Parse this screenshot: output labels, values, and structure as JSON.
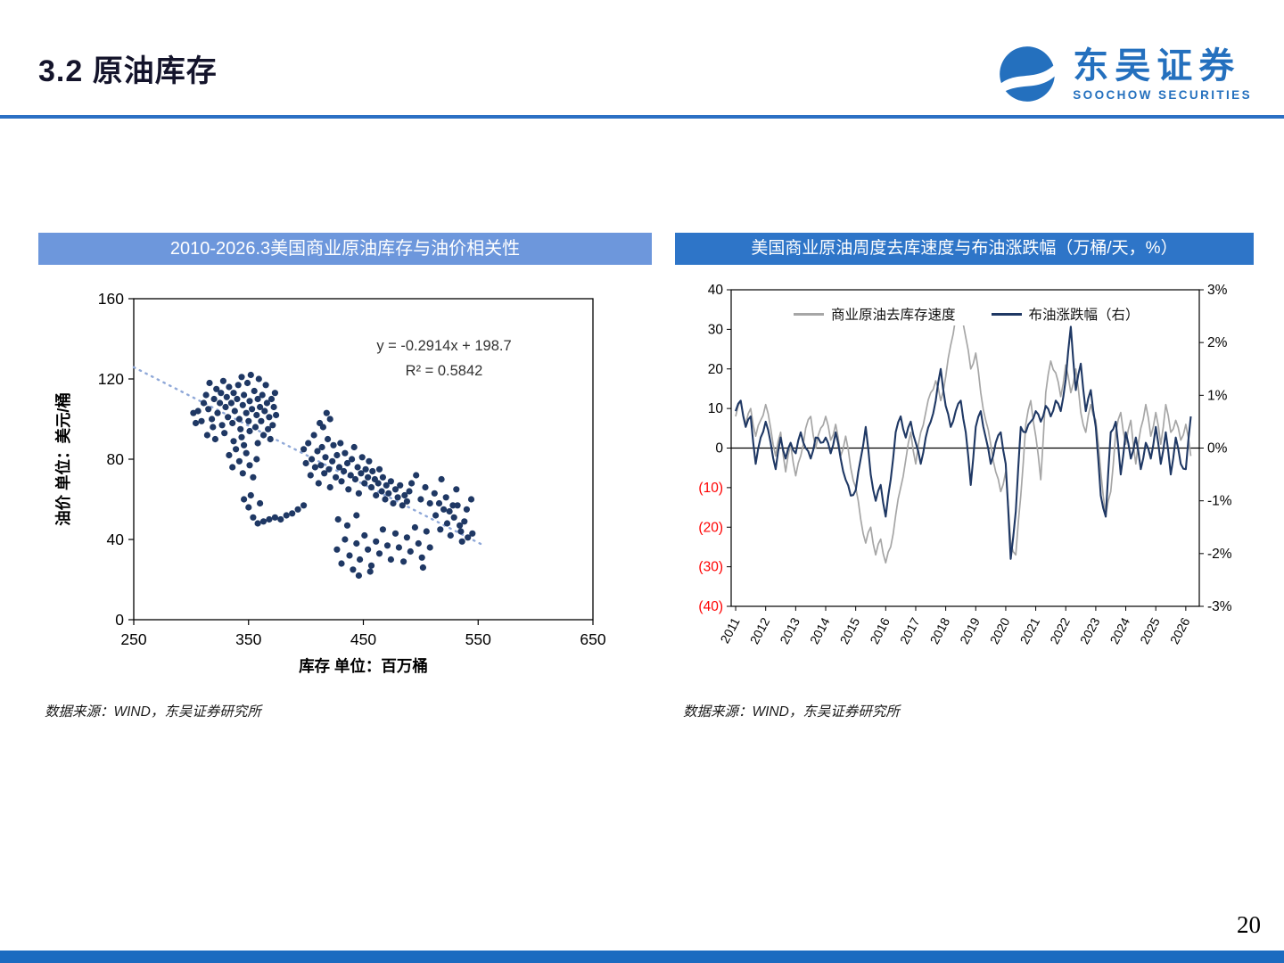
{
  "header": {
    "title": "3.2 原油库存",
    "logo_name": "东吴证券",
    "logo_subtitle": "SOOCHOW SECURITIES"
  },
  "panels": {
    "left": {
      "title": "2010-2026.3美国商业原油库存与油价相关性",
      "source": "数据来源：WIND，东吴证券研究所"
    },
    "right": {
      "title": "美国商业原油周度去库速度与布油涨跌幅（万桶/天，%）",
      "source": "数据来源：WIND，东吴证券研究所"
    }
  },
  "footer": {
    "page_number": "20"
  },
  "colors": {
    "accent_blue": "#2b70c4",
    "left_title_bg": "#6d97dc",
    "right_title_bg": "#2e75c8",
    "scatter_point": "#1f3864",
    "gray_series": "#a6a6a6",
    "navy_series": "#1f3864",
    "negative_tick": "#ff0000",
    "trendline": "#8fa8d8"
  },
  "chart_data": [
    {
      "type": "scatter",
      "title": "2010-2026.3美国商业原油库存与油价相关性",
      "xlabel": "库存 单位：百万桶",
      "ylabel": "油价 单位：美元/桶",
      "xlim": [
        250,
        650
      ],
      "ylim": [
        0,
        160
      ],
      "x_ticks": [
        "250",
        "350",
        "450",
        "550",
        "650"
      ],
      "y_ticks": [
        "0",
        "40",
        "80",
        "120",
        "160"
      ],
      "annotation_line1": "y = -0.2914x + 198.7",
      "annotation_line2": "R² = 0.5842",
      "trendline": {
        "slope": -0.2914,
        "intercept": 198.7,
        "x_range": [
          250,
          555
        ]
      },
      "points": [
        [
          306,
          104
        ],
        [
          309,
          99
        ],
        [
          311,
          108
        ],
        [
          313,
          112
        ],
        [
          315,
          105
        ],
        [
          316,
          118
        ],
        [
          318,
          100
        ],
        [
          319,
          96
        ],
        [
          320,
          110
        ],
        [
          322,
          115
        ],
        [
          323,
          103
        ],
        [
          325,
          108
        ],
        [
          326,
          113
        ],
        [
          327,
          97
        ],
        [
          328,
          119
        ],
        [
          330,
          106
        ],
        [
          331,
          111
        ],
        [
          332,
          101
        ],
        [
          333,
          116
        ],
        [
          335,
          108
        ],
        [
          336,
          98
        ],
        [
          337,
          113
        ],
        [
          338,
          104
        ],
        [
          340,
          110
        ],
        [
          341,
          117
        ],
        [
          342,
          100
        ],
        [
          343,
          95
        ],
        [
          344,
          121
        ],
        [
          345,
          107
        ],
        [
          346,
          112
        ],
        [
          348,
          103
        ],
        [
          349,
          118
        ],
        [
          350,
          99
        ],
        [
          351,
          109
        ],
        [
          352,
          122
        ],
        [
          353,
          105
        ],
        [
          355,
          114
        ],
        [
          356,
          96
        ],
        [
          357,
          102
        ],
        [
          358,
          110
        ],
        [
          359,
          120
        ],
        [
          360,
          106
        ],
        [
          361,
          99
        ],
        [
          362,
          112
        ],
        [
          364,
          104
        ],
        [
          365,
          117
        ],
        [
          366,
          108
        ],
        [
          367,
          95
        ],
        [
          368,
          101
        ],
        [
          370,
          110
        ],
        [
          371,
          97
        ],
        [
          372,
          106
        ],
        [
          373,
          113
        ],
        [
          374,
          102
        ],
        [
          302,
          103
        ],
        [
          304,
          98
        ],
        [
          314,
          92
        ],
        [
          321,
          90
        ],
        [
          329,
          93
        ],
        [
          337,
          89
        ],
        [
          344,
          91
        ],
        [
          351,
          94
        ],
        [
          358,
          88
        ],
        [
          363,
          92
        ],
        [
          369,
          90
        ],
        [
          333,
          82
        ],
        [
          336,
          76
        ],
        [
          339,
          85
        ],
        [
          342,
          79
        ],
        [
          345,
          73
        ],
        [
          348,
          83
        ],
        [
          351,
          77
        ],
        [
          354,
          71
        ],
        [
          357,
          80
        ],
        [
          346,
          87
        ],
        [
          346,
          60
        ],
        [
          350,
          56
        ],
        [
          354,
          51
        ],
        [
          358,
          48
        ],
        [
          363,
          49
        ],
        [
          368,
          50
        ],
        [
          373,
          51
        ],
        [
          378,
          50
        ],
        [
          383,
          52
        ],
        [
          388,
          53
        ],
        [
          393,
          55
        ],
        [
          398,
          57
        ],
        [
          352,
          62
        ],
        [
          360,
          58
        ],
        [
          398,
          85
        ],
        [
          400,
          78
        ],
        [
          402,
          88
        ],
        [
          404,
          72
        ],
        [
          405,
          80
        ],
        [
          407,
          92
        ],
        [
          408,
          76
        ],
        [
          410,
          84
        ],
        [
          411,
          68
        ],
        [
          413,
          77
        ],
        [
          414,
          86
        ],
        [
          416,
          73
        ],
        [
          417,
          81
        ],
        [
          419,
          90
        ],
        [
          420,
          75
        ],
        [
          421,
          66
        ],
        [
          423,
          79
        ],
        [
          424,
          87
        ],
        [
          426,
          71
        ],
        [
          427,
          82
        ],
        [
          429,
          76
        ],
        [
          430,
          88
        ],
        [
          431,
          69
        ],
        [
          433,
          74
        ],
        [
          434,
          83
        ],
        [
          436,
          78
        ],
        [
          437,
          65
        ],
        [
          439,
          72
        ],
        [
          440,
          80
        ],
        [
          442,
          86
        ],
        [
          443,
          70
        ],
        [
          445,
          76
        ],
        [
          446,
          63
        ],
        [
          448,
          73
        ],
        [
          449,
          81
        ],
        [
          451,
          68
        ],
        [
          452,
          75
        ],
        [
          454,
          71
        ],
        [
          455,
          79
        ],
        [
          457,
          66
        ],
        [
          458,
          74
        ],
        [
          460,
          70
        ],
        [
          461,
          62
        ],
        [
          463,
          68
        ],
        [
          464,
          75
        ],
        [
          466,
          64
        ],
        [
          467,
          71
        ],
        [
          469,
          60
        ],
        [
          470,
          67
        ],
        [
          472,
          63
        ],
        [
          474,
          69
        ],
        [
          476,
          58
        ],
        [
          478,
          65
        ],
        [
          480,
          61
        ],
        [
          482,
          67
        ],
        [
          484,
          57
        ],
        [
          486,
          62
        ],
        [
          488,
          59
        ],
        [
          490,
          64
        ],
        [
          412,
          98
        ],
        [
          418,
          103
        ],
        [
          415,
          96
        ],
        [
          421,
          100
        ],
        [
          428,
          50
        ],
        [
          436,
          47
        ],
        [
          444,
          52
        ],
        [
          427,
          35
        ],
        [
          431,
          28
        ],
        [
          434,
          40
        ],
        [
          438,
          32
        ],
        [
          441,
          25
        ],
        [
          444,
          38
        ],
        [
          447,
          30
        ],
        [
          451,
          42
        ],
        [
          454,
          35
        ],
        [
          457,
          27
        ],
        [
          461,
          39
        ],
        [
          464,
          33
        ],
        [
          467,
          45
        ],
        [
          471,
          37
        ],
        [
          474,
          30
        ],
        [
          478,
          43
        ],
        [
          481,
          36
        ],
        [
          485,
          29
        ],
        [
          488,
          41
        ],
        [
          491,
          34
        ],
        [
          495,
          46
        ],
        [
          498,
          38
        ],
        [
          501,
          31
        ],
        [
          505,
          44
        ],
        [
          508,
          36
        ],
        [
          446,
          22
        ],
        [
          456,
          24
        ],
        [
          502,
          26
        ],
        [
          513,
          52
        ],
        [
          517,
          45
        ],
        [
          520,
          55
        ],
        [
          523,
          48
        ],
        [
          526,
          42
        ],
        [
          529,
          51
        ],
        [
          532,
          57
        ],
        [
          535,
          44
        ],
        [
          538,
          49
        ],
        [
          541,
          41
        ],
        [
          516,
          58
        ],
        [
          525,
          54
        ],
        [
          534,
          47
        ],
        [
          540,
          55
        ],
        [
          545,
          43
        ],
        [
          544,
          60
        ],
        [
          536,
          39
        ],
        [
          492,
          68
        ],
        [
          496,
          72
        ],
        [
          500,
          60
        ],
        [
          504,
          66
        ],
        [
          508,
          58
        ],
        [
          512,
          63
        ],
        [
          518,
          70
        ],
        [
          522,
          61
        ],
        [
          528,
          57
        ],
        [
          531,
          65
        ]
      ]
    },
    {
      "type": "line",
      "title": "美国商业原油周度去库速度与布油涨跌幅（万桶/天，%）",
      "left_axis": {
        "min": -40,
        "max": 40,
        "ticks": [
          "40",
          "30",
          "20",
          "10",
          "0",
          "(10)",
          "(20)",
          "(30)",
          "(40)"
        ]
      },
      "right_axis": {
        "min": -3,
        "max": 3,
        "ticks": [
          "3%",
          "2%",
          "1%",
          "0%",
          "-1%",
          "-2%",
          "-3%"
        ]
      },
      "x_start": 2011,
      "x_step": 0.166667,
      "x_tick_labels": [
        "2011",
        "2012",
        "2013",
        "2014",
        "2015",
        "2016",
        "2017",
        "2018",
        "2019",
        "2020",
        "2021",
        "2022",
        "2023",
        "2024",
        "2025",
        "2026"
      ],
      "series": [
        {
          "name": "商业原油去库存速度",
          "axis": "left",
          "color": "#a6a6a6",
          "values": [
            8,
            12,
            6,
            10,
            3,
            7,
            11,
            5,
            -2,
            4,
            -6,
            1,
            -7,
            -2,
            5,
            8,
            0,
            5,
            8,
            2,
            6,
            -2,
            3,
            -5,
            -10,
            -18,
            -24,
            -20,
            -27,
            -23,
            -29,
            -25,
            -17,
            -10,
            -3,
            4,
            -4,
            4,
            9,
            14,
            17,
            12,
            18,
            26,
            33,
            36,
            28,
            20,
            24,
            14,
            7,
            1,
            -6,
            -11,
            -6,
            -24,
            -27,
            -12,
            6,
            12,
            3,
            -8,
            14,
            22,
            19,
            13,
            21,
            14,
            20,
            9,
            4,
            11,
            7,
            -6,
            -17,
            -11,
            4,
            9,
            1,
            7,
            -4,
            5,
            11,
            3,
            9,
            1,
            11,
            4,
            7,
            2,
            6,
            -2
          ]
        },
        {
          "name": "布油涨跌幅（右）",
          "axis": "right",
          "color": "#1f3864",
          "values": [
            0.7,
            0.9,
            0.4,
            0.6,
            -0.3,
            0.2,
            0.5,
            0.1,
            -0.4,
            0.2,
            -0.2,
            0.1,
            -0.1,
            0.3,
            0,
            -0.2,
            0.2,
            0.1,
            0.2,
            -0.1,
            0.3,
            -0.2,
            -0.6,
            -0.9,
            -0.8,
            -0.2,
            0.4,
            -0.5,
            -1,
            -0.7,
            -1.3,
            -0.6,
            0.3,
            0.6,
            0.2,
            0.5,
            0.1,
            -0.3,
            0.2,
            0.5,
            0.9,
            1.5,
            0.8,
            0.4,
            0.7,
            0.9,
            0.3,
            -0.7,
            0.4,
            0.7,
            0.2,
            -0.3,
            0.1,
            0.3,
            -0.3,
            -2.1,
            -1.2,
            0.4,
            0.3,
            0.5,
            0.7,
            0.5,
            0.8,
            0.6,
            0.9,
            0.7,
            1.3,
            2.3,
            1.1,
            1.6,
            0.7,
            1.1,
            0.4,
            -0.9,
            -1.3,
            0.3,
            0.5,
            -0.5,
            0.3,
            -0.2,
            0.2,
            -0.4,
            0.1,
            -0.2,
            0.4,
            -0.3,
            0.3,
            -0.5,
            0.2,
            -0.3,
            -0.4,
            0.6
          ]
        }
      ]
    }
  ]
}
